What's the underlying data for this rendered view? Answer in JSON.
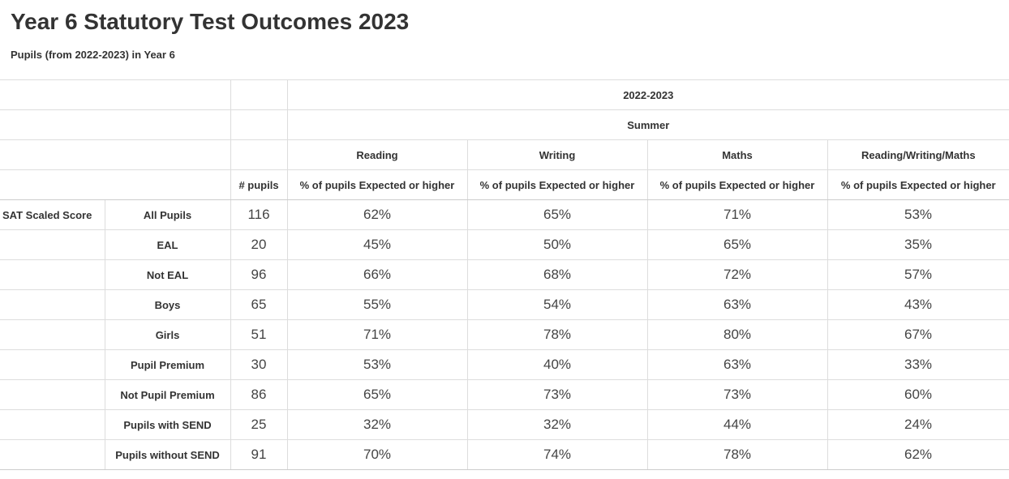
{
  "page": {
    "title": "Year 6 Statutory Test Outcomes 2023",
    "subtitle": "Pupils (from 2022-2023) in Year 6"
  },
  "table": {
    "period_header": "2022-2023",
    "term_header": "Summer",
    "subjects": [
      "Reading",
      "Writing",
      "Maths",
      "Reading/Writing/Maths"
    ],
    "pupils_header": "# pupils",
    "metric_header": "% of pupils Expected or higher",
    "measure_label": "SAT Scaled Score",
    "rows": [
      {
        "group": "All Pupils",
        "pupils": "116",
        "values": [
          "62%",
          "65%",
          "71%",
          "53%"
        ]
      },
      {
        "group": "EAL",
        "pupils": "20",
        "values": [
          "45%",
          "50%",
          "65%",
          "35%"
        ]
      },
      {
        "group": "Not EAL",
        "pupils": "96",
        "values": [
          "66%",
          "68%",
          "72%",
          "57%"
        ]
      },
      {
        "group": "Boys",
        "pupils": "65",
        "values": [
          "55%",
          "54%",
          "63%",
          "43%"
        ]
      },
      {
        "group": "Girls",
        "pupils": "51",
        "values": [
          "71%",
          "78%",
          "80%",
          "67%"
        ]
      },
      {
        "group": "Pupil Premium",
        "pupils": "30",
        "values": [
          "53%",
          "40%",
          "63%",
          "33%"
        ]
      },
      {
        "group": "Not Pupil Premium",
        "pupils": "86",
        "values": [
          "65%",
          "73%",
          "73%",
          "60%"
        ]
      },
      {
        "group": "Pupils with SEND",
        "pupils": "25",
        "values": [
          "32%",
          "32%",
          "44%",
          "24%"
        ]
      },
      {
        "group": "Pupils without SEND",
        "pupils": "91",
        "values": [
          "70%",
          "74%",
          "78%",
          "62%"
        ]
      }
    ]
  }
}
